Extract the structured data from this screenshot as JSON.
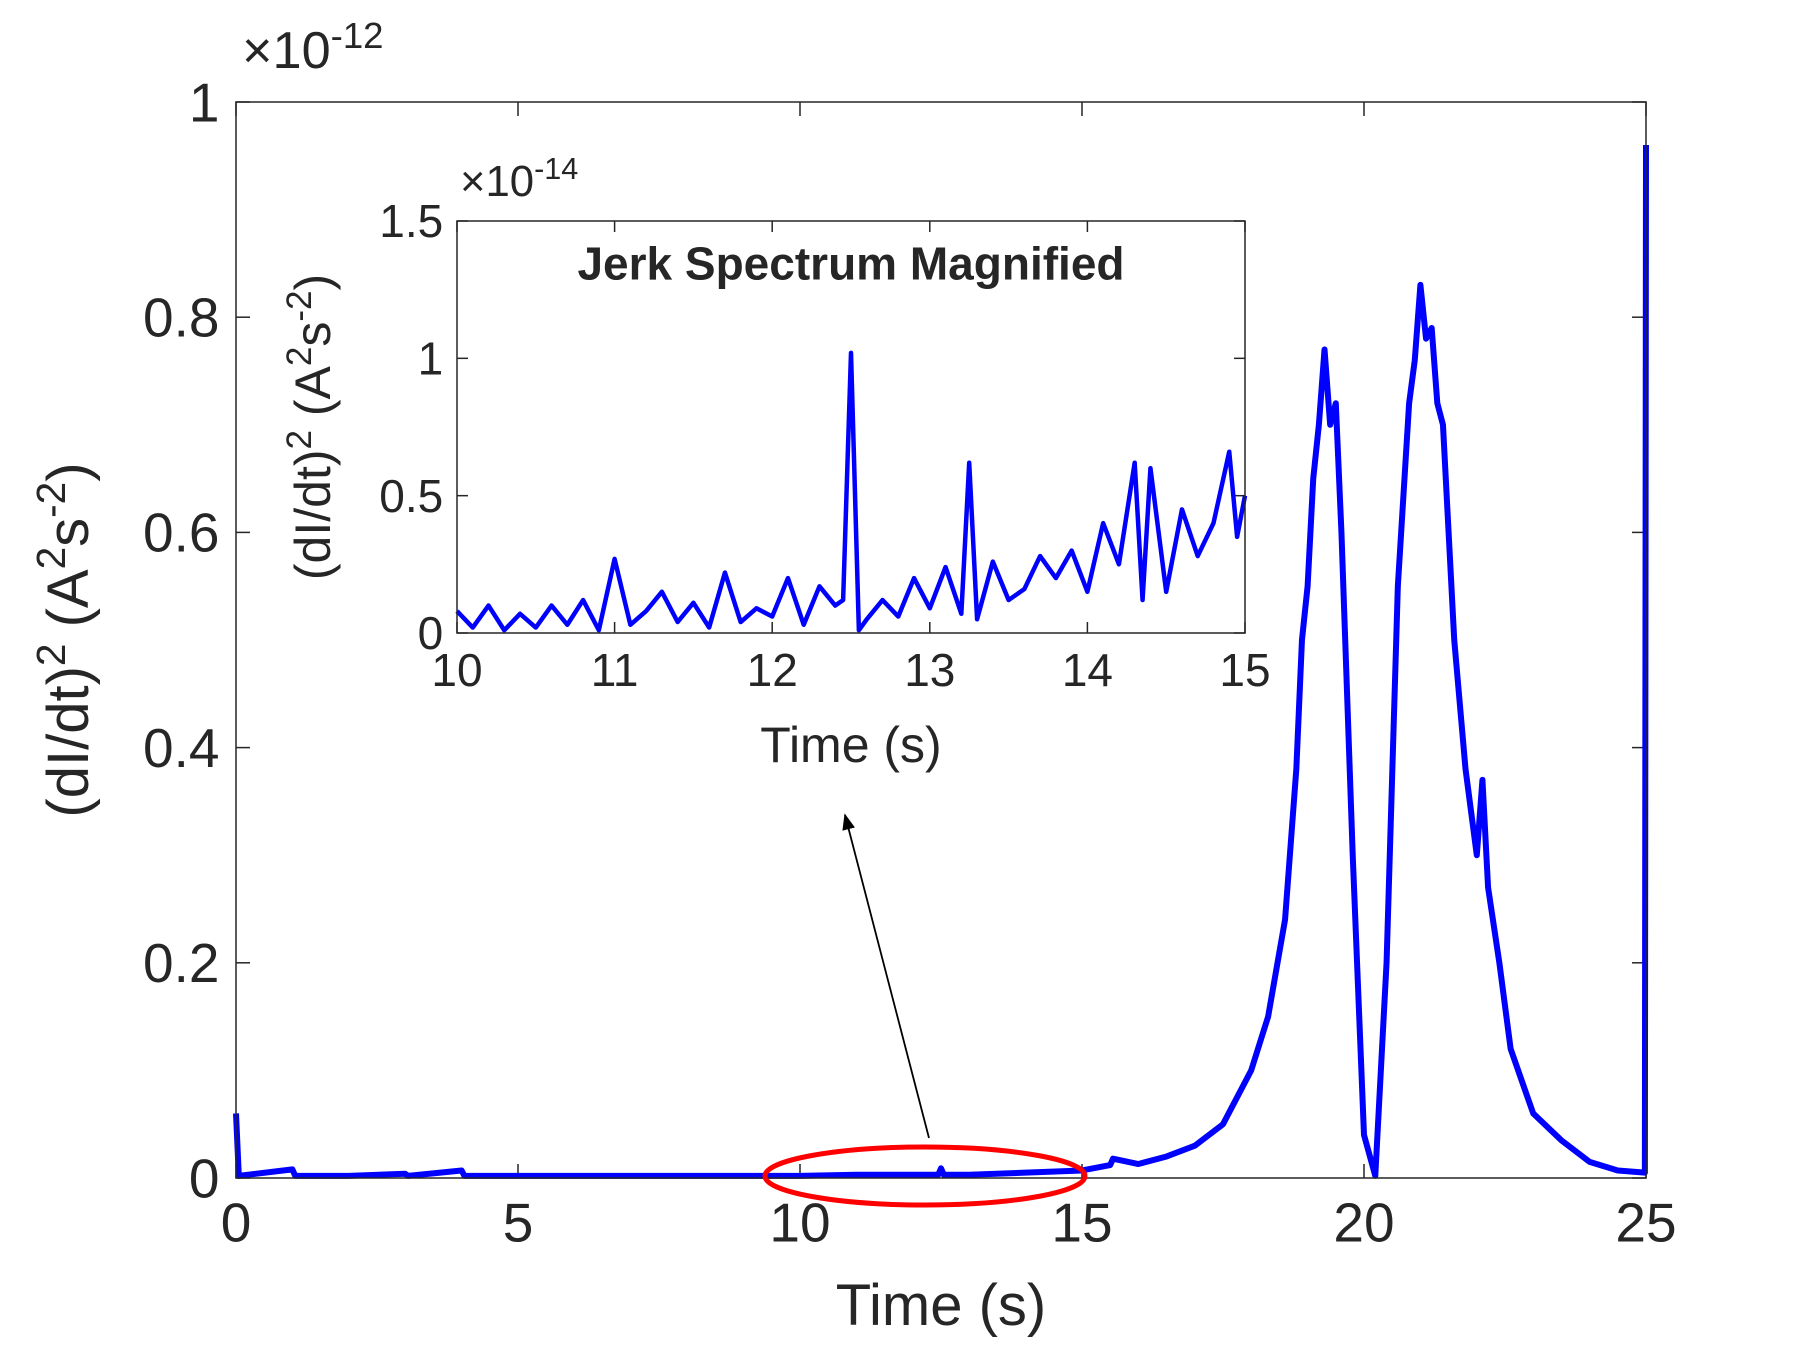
{
  "chart_data": [
    {
      "type": "line",
      "xlabel": "Time (s)",
      "ylabel": [
        "(dI/dt)",
        "2",
        " (A",
        "2",
        "s",
        "-2",
        ")"
      ],
      "y_multiplier": [
        "×10",
        "-12"
      ],
      "x": [
        0,
        0.05,
        1,
        1.05,
        2,
        3,
        3.05,
        4,
        4.05,
        5,
        6,
        7,
        8,
        9,
        10,
        11,
        12,
        12.45,
        12.5,
        12.55,
        13,
        14,
        15,
        15.5,
        15.55,
        16,
        16.5,
        17,
        17.5,
        18,
        18.3,
        18.6,
        18.8,
        18.9,
        19.0,
        19.1,
        19.2,
        19.3,
        19.4,
        19.5,
        19.6,
        19.8,
        20.0,
        20.2,
        20.4,
        20.6,
        20.8,
        20.9,
        21.0,
        21.1,
        21.2,
        21.3,
        21.4,
        21.6,
        21.8,
        22.0,
        22.1,
        22.2,
        22.4,
        22.6,
        23,
        23.5,
        24,
        24.5,
        24.98,
        25
      ],
      "values": [
        0.06,
        0.002,
        0.008,
        0.002,
        0.002,
        0.004,
        0.002,
        0.007,
        0.002,
        0.002,
        0.002,
        0.002,
        0.002,
        0.002,
        0.002,
        0.003,
        0.003,
        0.003,
        0.009,
        0.003,
        0.003,
        0.005,
        0.007,
        0.012,
        0.018,
        0.013,
        0.02,
        0.03,
        0.05,
        0.1,
        0.15,
        0.24,
        0.38,
        0.5,
        0.55,
        0.65,
        0.7,
        0.77,
        0.7,
        0.72,
        0.6,
        0.3,
        0.04,
        0.002,
        0.2,
        0.55,
        0.72,
        0.76,
        0.83,
        0.78,
        0.79,
        0.72,
        0.7,
        0.5,
        0.38,
        0.3,
        0.37,
        0.27,
        0.2,
        0.12,
        0.06,
        0.035,
        0.015,
        0.007,
        0.005,
        0.96
      ],
      "color": "#0000ff",
      "xlim": [
        0,
        25
      ],
      "xticks": [
        0,
        5,
        10,
        15,
        20,
        25
      ],
      "ylim": [
        0,
        1
      ],
      "yticks": [
        0,
        0.2,
        0.4,
        0.6,
        0.8,
        1
      ]
    },
    {
      "type": "line",
      "title": "Jerk Spectrum Magnified",
      "xlabel": "Time (s)",
      "ylabel": [
        "(dI/dt)",
        "2",
        " (A",
        "2",
        "s",
        "-2",
        ")"
      ],
      "y_multiplier": [
        "×10",
        "-14"
      ],
      "x": [
        10.0,
        10.1,
        10.2,
        10.3,
        10.4,
        10.5,
        10.6,
        10.7,
        10.8,
        10.9,
        11.0,
        11.1,
        11.2,
        11.3,
        11.4,
        11.5,
        11.6,
        11.7,
        11.8,
        11.9,
        12.0,
        12.1,
        12.2,
        12.3,
        12.4,
        12.45,
        12.5,
        12.55,
        12.6,
        12.7,
        12.8,
        12.9,
        13.0,
        13.1,
        13.2,
        13.25,
        13.3,
        13.4,
        13.5,
        13.6,
        13.7,
        13.8,
        13.9,
        14.0,
        14.1,
        14.2,
        14.3,
        14.35,
        14.4,
        14.5,
        14.6,
        14.7,
        14.8,
        14.9,
        14.95,
        15.0
      ],
      "values": [
        0.08,
        0.02,
        0.1,
        0.01,
        0.07,
        0.02,
        0.1,
        0.03,
        0.12,
        0.01,
        0.27,
        0.03,
        0.08,
        0.15,
        0.04,
        0.11,
        0.02,
        0.22,
        0.04,
        0.09,
        0.06,
        0.2,
        0.03,
        0.17,
        0.1,
        0.12,
        1.02,
        0.01,
        0.05,
        0.12,
        0.06,
        0.2,
        0.09,
        0.24,
        0.07,
        0.62,
        0.05,
        0.26,
        0.12,
        0.16,
        0.28,
        0.2,
        0.3,
        0.15,
        0.4,
        0.25,
        0.62,
        0.12,
        0.6,
        0.15,
        0.45,
        0.28,
        0.4,
        0.66,
        0.35,
        0.5
      ],
      "color": "#0000ff",
      "xlim": [
        10,
        15
      ],
      "xticks": [
        10,
        11,
        12,
        13,
        14,
        15
      ],
      "ylim": [
        0,
        1.5
      ],
      "yticks": [
        0,
        0.5,
        1,
        1.5
      ]
    }
  ]
}
